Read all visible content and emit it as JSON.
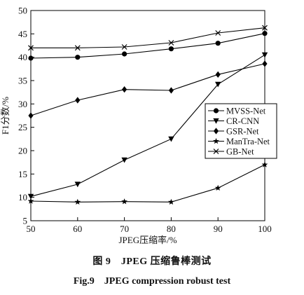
{
  "chart_data": {
    "type": "line",
    "x": [
      50,
      60,
      70,
      80,
      90,
      100
    ],
    "xlabel": "JPEG压缩率/%",
    "ylabel": "F1分数/%",
    "xlim": [
      50,
      100
    ],
    "ylim": [
      5,
      50
    ],
    "xticks": [
      "50",
      "60",
      "70",
      "80",
      "90",
      "100"
    ],
    "yticks": [
      "5",
      "10",
      "15",
      "20",
      "25",
      "30",
      "35",
      "40",
      "45",
      "50"
    ],
    "grid": false,
    "legend_position": "right",
    "series": [
      {
        "name": "MVSS-Net",
        "marker": "circle",
        "values": [
          39.8,
          40.0,
          40.7,
          41.8,
          43.0,
          45.1
        ]
      },
      {
        "name": "CR-CNN",
        "marker": "triangle-down",
        "values": [
          10.2,
          12.8,
          18.0,
          22.5,
          34.2,
          40.5
        ]
      },
      {
        "name": "GSR-Net",
        "marker": "diamond",
        "values": [
          27.5,
          30.8,
          33.1,
          32.9,
          36.3,
          38.6
        ]
      },
      {
        "name": "ManTra-Net",
        "marker": "star",
        "values": [
          9.2,
          9.0,
          9.1,
          9.0,
          12.0,
          17.0
        ]
      },
      {
        "name": "GB-Net",
        "marker": "x",
        "values": [
          42.0,
          42.0,
          42.2,
          43.1,
          45.2,
          46.3
        ]
      }
    ]
  },
  "caption": {
    "cn": "图 9　JPEG 压缩鲁棒测试",
    "en": "Fig.9　JPEG compression robust test"
  }
}
